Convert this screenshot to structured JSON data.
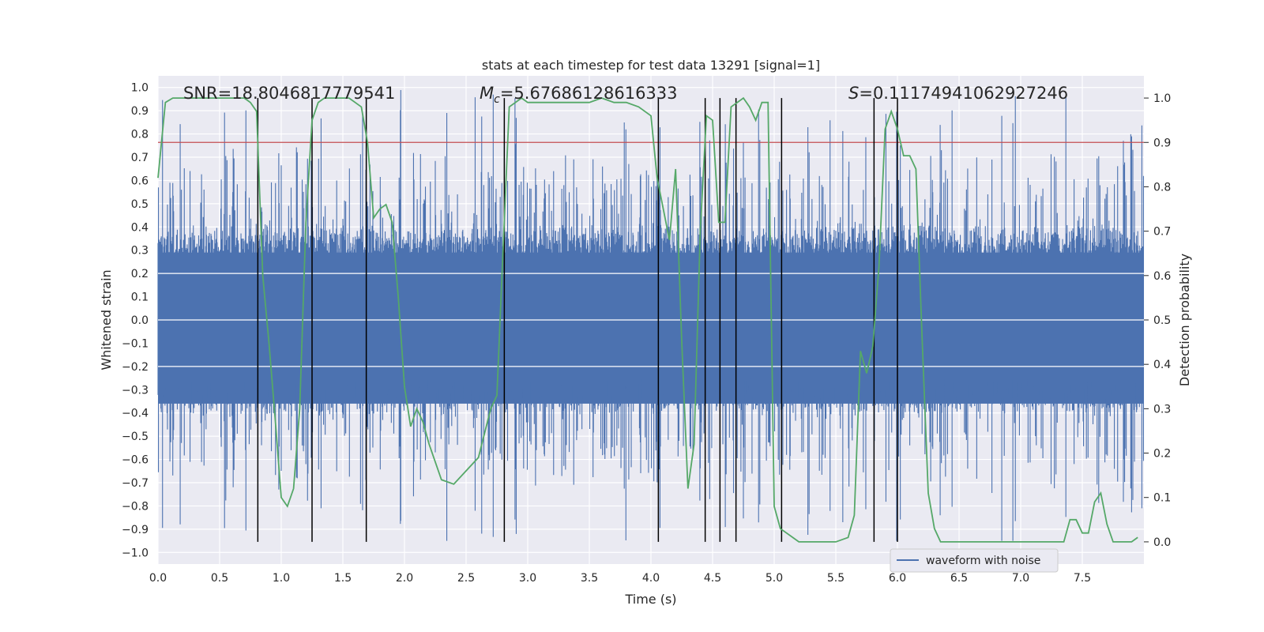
{
  "chart_data": {
    "type": "line",
    "title": "stats at each timestep for test data 13291 [signal=1]",
    "xlabel": "Time (s)",
    "ylabel_left": "Whitened strain",
    "ylabel_right": "Detection probability",
    "xlim": [
      0.0,
      8.0
    ],
    "ylim_left": [
      -1.05,
      1.05
    ],
    "ylim_right": [
      -0.05,
      1.05
    ],
    "x_ticks": [
      0.0,
      0.5,
      1.0,
      1.5,
      2.0,
      2.5,
      3.0,
      3.5,
      4.0,
      4.5,
      5.0,
      5.5,
      6.0,
      6.5,
      7.0,
      7.5
    ],
    "x_tick_labels": [
      "0.0",
      "0.5",
      "1.0",
      "1.5",
      "2.0",
      "2.5",
      "3.0",
      "3.5",
      "4.0",
      "4.5",
      "5.0",
      "5.5",
      "6.0",
      "6.5",
      "7.0",
      "7.5"
    ],
    "y_ticks_left": [
      1.0,
      0.9,
      0.8,
      0.7,
      0.6,
      0.5,
      0.4,
      0.3,
      0.2,
      0.1,
      0.0,
      -0.1,
      -0.2,
      -0.3,
      -0.4,
      -0.5,
      -0.6,
      -0.7,
      -0.8,
      -0.9,
      -1.0
    ],
    "y_tick_labels_left": [
      "1.0",
      "0.9",
      "0.8",
      "0.7",
      "0.6",
      "0.5",
      "0.4",
      "0.3",
      "0.2",
      "0.1",
      "0.0",
      "−0.1",
      "−0.2",
      "−0.3",
      "−0.4",
      "−0.5",
      "−0.6",
      "−0.7",
      "−0.8",
      "−0.9",
      "−1.0"
    ],
    "y_ticks_right": [
      1.0,
      0.9,
      0.8,
      0.7,
      0.6,
      0.5,
      0.4,
      0.3,
      0.2,
      0.1,
      0.0
    ],
    "y_tick_labels_right": [
      "1.0",
      "0.9",
      "0.8",
      "0.7",
      "0.6",
      "0.5",
      "0.4",
      "0.3",
      "0.2",
      "0.1",
      "0.0"
    ],
    "grid": true,
    "legend": {
      "position": "lower-right",
      "entries": [
        "waveform with noise"
      ]
    },
    "annotations": {
      "snr": "SNR=18.8046817779541",
      "mc_symbol": "M",
      "mc_sub": "c",
      "mc_value": "=5.67686128616333",
      "s_symbol": "S",
      "s_value": "=0.11174941062927246"
    },
    "waveform": {
      "name": "waveform with noise",
      "color": "#4c72b0",
      "duration_s": 8.0,
      "core_amplitude": 0.38,
      "peak_range": [
        -0.95,
        1.0
      ]
    },
    "threshold": {
      "y_right": 0.9,
      "color": "#c44e52"
    },
    "detection_probability": {
      "color": "#55a868",
      "x": [
        0.0,
        0.06,
        0.12,
        0.2,
        0.3,
        0.45,
        0.6,
        0.7,
        0.75,
        0.8,
        0.85,
        0.9,
        0.95,
        1.0,
        1.05,
        1.1,
        1.15,
        1.2,
        1.25,
        1.3,
        1.35,
        1.45,
        1.55,
        1.65,
        1.7,
        1.75,
        1.8,
        1.85,
        1.9,
        1.95,
        2.0,
        2.05,
        2.1,
        2.15,
        2.2,
        2.3,
        2.4,
        2.5,
        2.6,
        2.7,
        2.75,
        2.8,
        2.85,
        2.9,
        2.95,
        3.0,
        3.1,
        3.2,
        3.3,
        3.4,
        3.5,
        3.6,
        3.7,
        3.8,
        3.9,
        4.0,
        4.05,
        4.1,
        4.15,
        4.2,
        4.25,
        4.3,
        4.35,
        4.4,
        4.45,
        4.5,
        4.55,
        4.6,
        4.65,
        4.7,
        4.75,
        4.8,
        4.85,
        4.9,
        4.95,
        5.0,
        5.05,
        5.1,
        5.15,
        5.2,
        5.3,
        5.4,
        5.5,
        5.6,
        5.65,
        5.7,
        5.75,
        5.8,
        5.85,
        5.9,
        5.95,
        6.0,
        6.05,
        6.1,
        6.15,
        6.2,
        6.25,
        6.3,
        6.35,
        6.4,
        6.5,
        6.6,
        6.7,
        6.8,
        6.9,
        7.0,
        7.1,
        7.2,
        7.3,
        7.35,
        7.4,
        7.45,
        7.5,
        7.55,
        7.6,
        7.65,
        7.7,
        7.75,
        7.8,
        7.85,
        7.9,
        7.95
      ],
      "y": [
        0.82,
        0.99,
        1.0,
        1.0,
        1.0,
        1.0,
        1.0,
        1.0,
        0.99,
        0.97,
        0.6,
        0.45,
        0.28,
        0.1,
        0.08,
        0.12,
        0.3,
        0.72,
        0.95,
        0.99,
        1.0,
        1.0,
        1.0,
        0.98,
        0.9,
        0.73,
        0.75,
        0.76,
        0.72,
        0.55,
        0.35,
        0.26,
        0.3,
        0.27,
        0.22,
        0.14,
        0.13,
        0.16,
        0.19,
        0.3,
        0.33,
        0.66,
        0.98,
        0.99,
        1.0,
        0.99,
        0.99,
        0.99,
        0.99,
        0.99,
        0.99,
        1.0,
        0.99,
        0.99,
        0.98,
        0.96,
        0.82,
        0.75,
        0.68,
        0.84,
        0.45,
        0.12,
        0.22,
        0.7,
        0.96,
        0.95,
        0.72,
        0.72,
        0.98,
        0.99,
        1.0,
        0.98,
        0.95,
        0.99,
        0.99,
        0.08,
        0.03,
        0.02,
        0.01,
        0.0,
        0.0,
        0.0,
        0.0,
        0.01,
        0.06,
        0.43,
        0.38,
        0.44,
        0.62,
        0.93,
        0.97,
        0.93,
        0.87,
        0.87,
        0.84,
        0.46,
        0.11,
        0.03,
        0.0,
        0.0,
        0.0,
        0.0,
        0.0,
        0.0,
        0.0,
        0.0,
        0.0,
        0.0,
        0.0,
        0.0,
        0.05,
        0.05,
        0.02,
        0.02,
        0.09,
        0.11,
        0.04,
        0.0,
        0.0,
        0.0,
        0.0,
        0.01
      ]
    },
    "vertical_markers": {
      "color": "#000000",
      "x": [
        0.81,
        1.25,
        1.69,
        2.81,
        4.06,
        4.44,
        4.56,
        4.69,
        5.06,
        5.81,
        6.0
      ],
      "y_range_right": [
        0.0,
        1.0
      ]
    }
  }
}
